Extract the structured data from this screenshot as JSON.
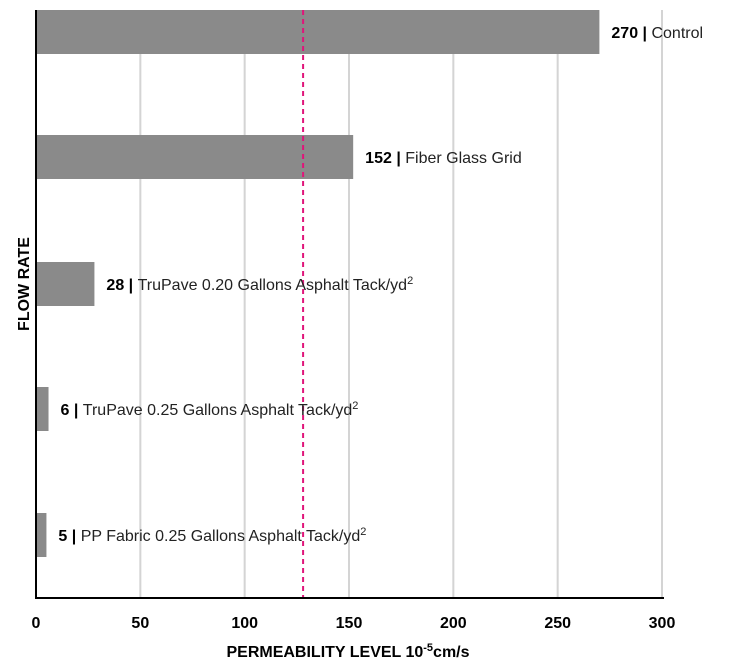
{
  "chart_data": {
    "type": "bar",
    "orientation": "horizontal",
    "xlabel_main": "PERMEABILITY LEVEL 10",
    "xlabel_exp": "-5",
    "xlabel_unit": "cm/s",
    "ylabel": "FLOW RATE",
    "xlim": [
      0,
      300
    ],
    "xticks": [
      0,
      50,
      100,
      150,
      200,
      250,
      300
    ],
    "grid": "vertical",
    "reference_line_x": 128,
    "bar_color": "#8a8a8a",
    "reference_line_color": "#e0157a",
    "bars": [
      {
        "value": 270,
        "value_label": "270",
        "category": "Control",
        "sup": ""
      },
      {
        "value": 152,
        "value_label": "152",
        "category": "Fiber Glass Grid",
        "sup": ""
      },
      {
        "value": 28,
        "value_label": "28",
        "category": "TruPave 0.20 Gallons Asphalt Tack/yd",
        "sup": "2"
      },
      {
        "value": 6,
        "value_label": "6",
        "category": "TruPave 0.25 Gallons Asphalt Tack/yd",
        "sup": "2"
      },
      {
        "value": 5,
        "value_label": "5",
        "category": "PP Fabric 0.25 Gallons Asphalt Tack/yd",
        "sup": "2"
      }
    ]
  }
}
